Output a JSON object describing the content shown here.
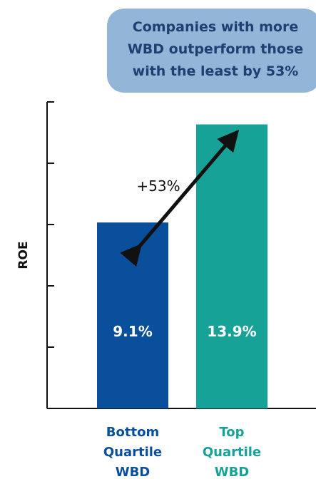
{
  "chart_data": {
    "type": "bar",
    "callout": [
      "Companies with more",
      "WBD outperform those",
      "with the least by 53%"
    ],
    "ylabel": "ROE",
    "xlabel": "",
    "grid": false,
    "ylim": [
      0,
      15
    ],
    "categories": [
      [
        "Bottom",
        "Quartile",
        "WBD"
      ],
      [
        "Top",
        "Quartile",
        "WBD"
      ]
    ],
    "values": [
      9.1,
      13.9
    ],
    "data_labels": [
      "9.1%",
      "13.9%"
    ],
    "annotation": "+53%",
    "colors": {
      "bottom_bar": "#0a4f9c",
      "top_bar": "#16a296",
      "bubble_fill": "#93b6d8",
      "bubble_text": "#1f3f73",
      "axis": "#111111"
    }
  }
}
